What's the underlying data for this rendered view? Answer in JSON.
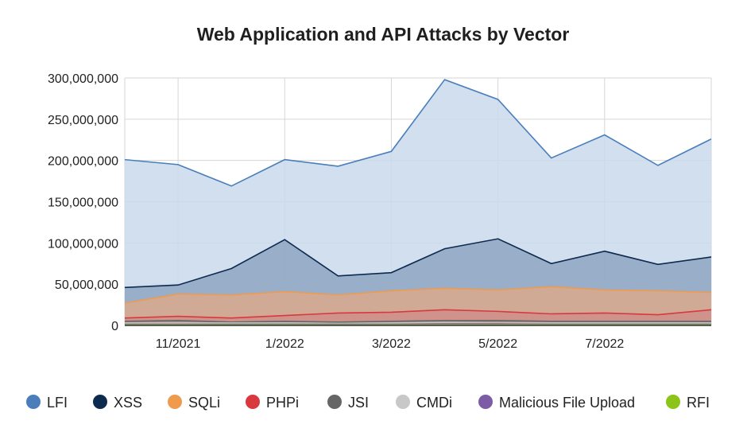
{
  "chart_data": {
    "type": "area",
    "title": "Web Application and API Attacks by Vector",
    "xlabel": "",
    "ylabel": "",
    "ylim": [
      0,
      300000000
    ],
    "y_ticks": [
      "0",
      "50,000,000",
      "100,000,000",
      "150,000,000",
      "200,000,000",
      "250,000,000",
      "300,000,000"
    ],
    "x": [
      "10/2021",
      "11/2021",
      "12/2021",
      "1/2022",
      "2/2022",
      "3/2022",
      "4/2022",
      "5/2022",
      "6/2022",
      "7/2022",
      "8/2022",
      "9/2022"
    ],
    "x_tick_labels": [
      "11/2021",
      "1/2022",
      "3/2022",
      "5/2022",
      "7/2022"
    ],
    "grid": true,
    "legend_position": "bottom",
    "series": [
      {
        "name": "LFI",
        "color": "#4a7ebb",
        "fill": "#c9d9ec",
        "values": [
          201000000,
          195000000,
          169000000,
          201000000,
          193000000,
          211000000,
          298000000,
          274000000,
          203000000,
          231000000,
          194000000,
          226000000
        ]
      },
      {
        "name": "XSS",
        "color": "#0d2a4f",
        "fill": "#8ea6c2",
        "values": [
          46000000,
          49000000,
          69000000,
          104000000,
          60000000,
          64000000,
          93000000,
          105000000,
          75000000,
          90000000,
          74000000,
          83000000
        ]
      },
      {
        "name": "SQLi",
        "color": "#f09a4e",
        "fill": "#d9a98c",
        "values": [
          27000000,
          38000000,
          37000000,
          41000000,
          37000000,
          42000000,
          45000000,
          43000000,
          47000000,
          43000000,
          42000000,
          40000000
        ]
      },
      {
        "name": "PHPi",
        "color": "#d9383f",
        "fill": "#cf8f8a",
        "values": [
          9000000,
          11000000,
          9000000,
          12000000,
          15000000,
          16000000,
          19000000,
          17000000,
          14000000,
          15000000,
          13000000,
          19000000
        ]
      },
      {
        "name": "JSI",
        "color": "#666666",
        "fill": "#a08a86",
        "values": [
          5000000,
          6000000,
          4000000,
          5000000,
          4000000,
          5000000,
          6000000,
          6000000,
          5000000,
          5000000,
          5000000,
          5000000
        ]
      },
      {
        "name": "CMDi",
        "color": "#c8c8c8",
        "fill": "#c2b8b4",
        "values": [
          3000000,
          3000000,
          3000000,
          3000000,
          2500000,
          3000000,
          3500000,
          3000000,
          3000000,
          3000000,
          3000000,
          3000000
        ]
      },
      {
        "name": "Malicious File Upload",
        "color": "#7d5ca6",
        "fill": "#a596b5",
        "values": [
          1500000,
          1500000,
          1500000,
          1500000,
          1500000,
          1500000,
          2000000,
          2000000,
          1500000,
          1500000,
          1500000,
          1500000
        ]
      },
      {
        "name": "RFI",
        "color": "#8cc418",
        "fill": "#b7d37a",
        "values": [
          700000,
          700000,
          700000,
          700000,
          700000,
          700000,
          800000,
          800000,
          700000,
          700000,
          700000,
          700000
        ]
      }
    ]
  }
}
